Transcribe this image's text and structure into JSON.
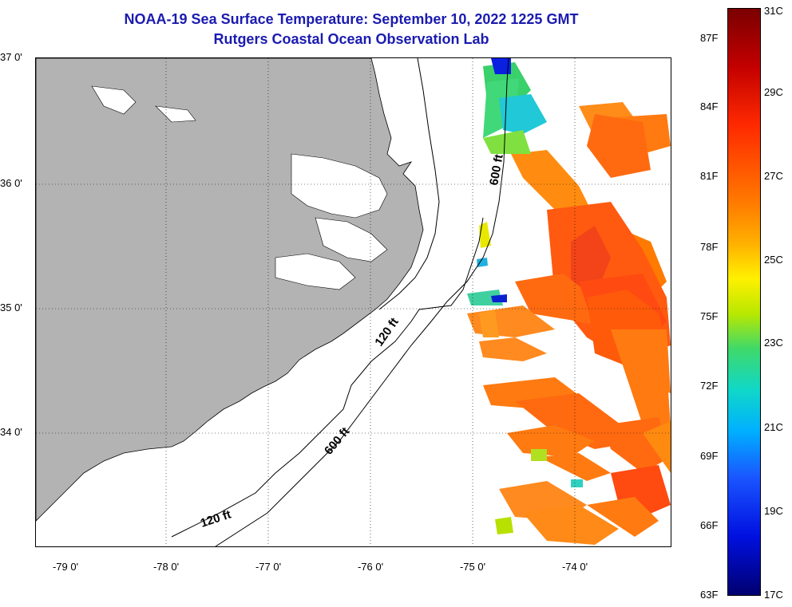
{
  "title_line1": "NOAA-19 Sea Surface Temperature:  September 10, 2022 1225 GMT",
  "title_line2": "Rutgers Coastal Ocean Observation Lab",
  "lat_labels": [
    "37 0'",
    "36 0'",
    "35 0'",
    "34 0'"
  ],
  "lon_labels": [
    "-79 0'",
    "-78 0'",
    "-77 0'",
    "-76 0'",
    "-75 0'",
    "-74 0'"
  ],
  "contours": {
    "c120_a": "120 ft",
    "c120_b": "120 ft",
    "c600_a": "600 ft",
    "c600_b": "600 ft"
  },
  "colorbar": {
    "fahrenheit": [
      "87F",
      "84F",
      "81F",
      "78F",
      "75F",
      "72F",
      "69F",
      "66F",
      "63F"
    ],
    "celsius": [
      "31C",
      "29C",
      "27C",
      "25C",
      "23C",
      "21C",
      "19C",
      "17C"
    ]
  },
  "colors": {
    "land": "#b3b3b3",
    "title": "#1b1bb0",
    "warm": "#ff6a10",
    "cool": "#20d0e0"
  }
}
